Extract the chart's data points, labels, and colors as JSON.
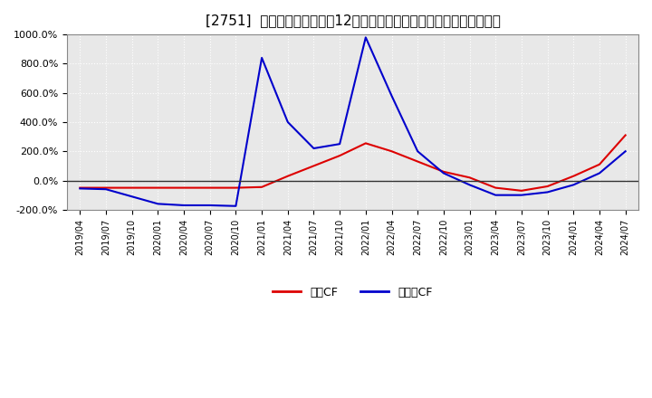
{
  "title": "[2751]  キャッシュフローの12か月移動合計の対前年同期増減率の推移",
  "title_fontsize": 11,
  "background_color": "#ffffff",
  "plot_bg_color": "#e8e8e8",
  "grid_color": "#ffffff",
  "ylim": [
    -200,
    1000
  ],
  "yticks": [
    -200,
    0,
    200,
    400,
    600,
    800,
    1000
  ],
  "ytick_labels": [
    "-200.0%",
    "0.0%",
    "200.0%",
    "400.0%",
    "600.0%",
    "800.0%",
    "1000.0%"
  ],
  "legend_labels": [
    "営業CF",
    "フリーCF"
  ],
  "line_colors": [
    "#dd0000",
    "#0000cc"
  ],
  "xtick_labels": [
    "2019/04",
    "2019/07",
    "2019/10",
    "2020/01",
    "2020/04",
    "2020/07",
    "2020/10",
    "2021/01",
    "2021/04",
    "2021/07",
    "2021/10",
    "2022/01",
    "2022/04",
    "2022/07",
    "2022/10",
    "2023/01",
    "2023/04",
    "2023/07",
    "2023/10",
    "2024/01",
    "2024/04",
    "2024/07"
  ],
  "operating_cf": [
    -50,
    -50,
    -50,
    -50,
    -50,
    -50,
    -50,
    -45,
    30,
    100,
    170,
    255,
    200,
    130,
    60,
    20,
    -50,
    -70,
    -40,
    30,
    110,
    310
  ],
  "free_cf": [
    -55,
    -60,
    -110,
    -160,
    -170,
    -170,
    -175,
    840,
    400,
    220,
    250,
    980,
    580,
    200,
    50,
    -30,
    -100,
    -100,
    -80,
    -30,
    50,
    200
  ],
  "x_indices": [
    0,
    1,
    2,
    3,
    4,
    5,
    6,
    7,
    8,
    9,
    10,
    11,
    12,
    13,
    14,
    15,
    16,
    17,
    18,
    19,
    20,
    21
  ]
}
